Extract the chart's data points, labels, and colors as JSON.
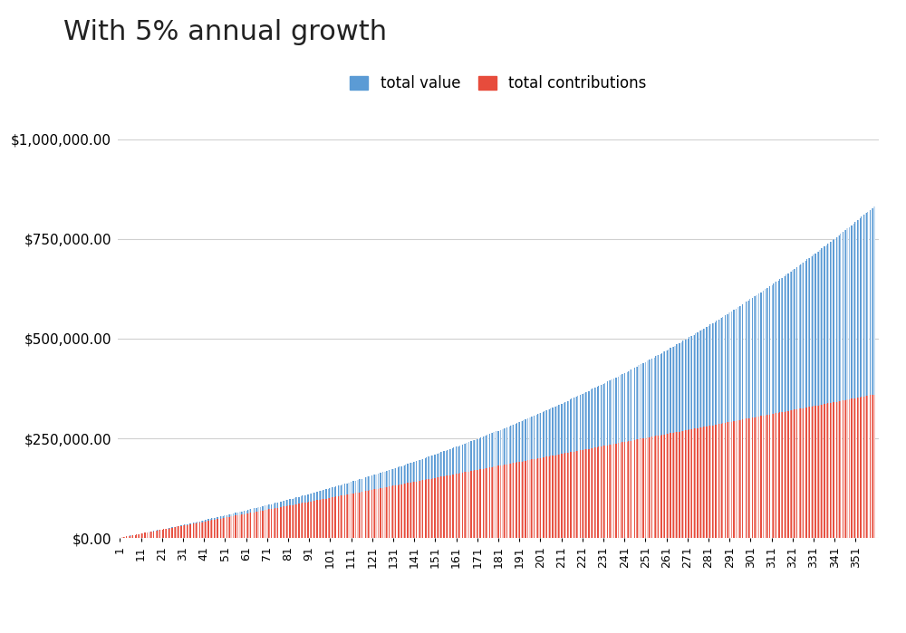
{
  "title": "With 5% annual growth",
  "title_fontsize": 22,
  "annual_rate": 0.05,
  "monthly_contribution": 1000,
  "n_months": 360,
  "bar_color_total": "#5b9bd5",
  "bar_color_contributions": "#e74c3c",
  "legend_labels": [
    "total value",
    "total contributions"
  ],
  "ytick_values": [
    0,
    250000,
    500000,
    750000,
    1000000
  ],
  "ylim": [
    0,
    1000000
  ],
  "background_color": "#ffffff",
  "grid_color": "#d0d0d0",
  "hatch_total": "|||",
  "hatch_contrib": "|||"
}
